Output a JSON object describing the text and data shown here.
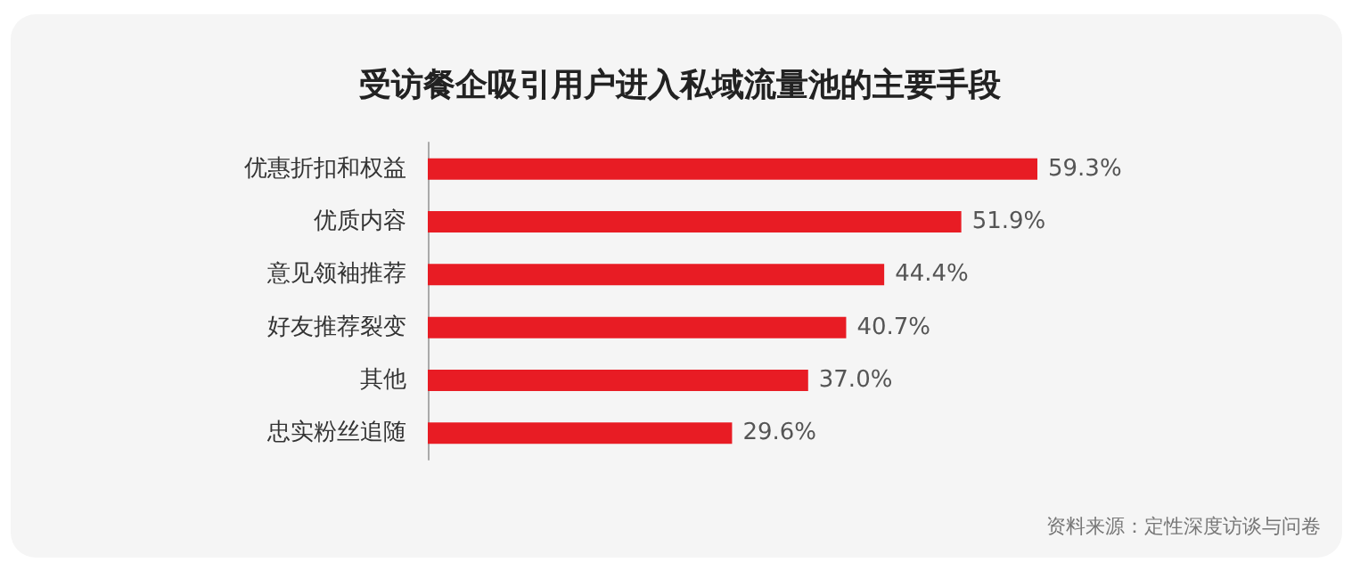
{
  "chart_data": {
    "type": "bar",
    "orientation": "horizontal",
    "title": "受访餐企吸引用户进入私域流量池的主要手段",
    "categories": [
      "优惠折扣和权益",
      "优质内容",
      "意见领袖推荐",
      "好友推荐裂变",
      "其他",
      "忠实粉丝追随"
    ],
    "values": [
      59.3,
      51.9,
      44.4,
      40.7,
      37.0,
      29.6
    ],
    "value_labels": [
      "59.3%",
      "51.9%",
      "44.4%",
      "40.7%",
      "37.0%",
      "29.6%"
    ],
    "color": "#e81c24",
    "annotations": [
      "资料来源：定性深度访谈与问卷"
    ]
  }
}
